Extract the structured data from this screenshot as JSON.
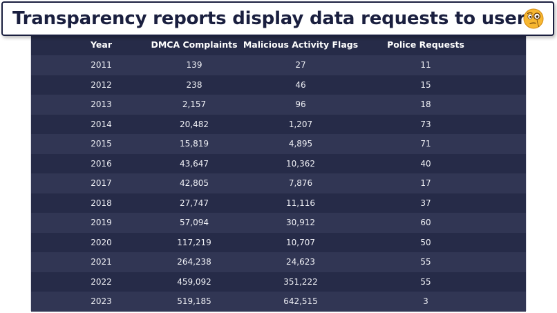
{
  "title": "Transparency reports display data requests to users",
  "icon": "thinking-face-icon",
  "colors": {
    "table_background": "#232844",
    "row_alt": "#313654",
    "title_text": "#1a1f3f",
    "emoji": "#f7b731"
  },
  "table": {
    "headers": [
      "Year",
      "DMCA Complaints",
      "Malicious Activity Flags",
      "Police Requests"
    ],
    "rows": [
      [
        "2011",
        "139",
        "27",
        "11"
      ],
      [
        "2012",
        "238",
        "46",
        "15"
      ],
      [
        "2013",
        "2,157",
        "96",
        "18"
      ],
      [
        "2014",
        "20,482",
        "1,207",
        "73"
      ],
      [
        "2015",
        "15,819",
        "4,895",
        "71"
      ],
      [
        "2016",
        "43,647",
        "10,362",
        "40"
      ],
      [
        "2017",
        "42,805",
        "7,876",
        "17"
      ],
      [
        "2018",
        "27,747",
        "11,116",
        "37"
      ],
      [
        "2019",
        "57,094",
        "30,912",
        "60"
      ],
      [
        "2020",
        "117,219",
        "10,707",
        "50"
      ],
      [
        "2021",
        "264,238",
        "24,623",
        "55"
      ],
      [
        "2022",
        "459,092",
        "351,222",
        "55"
      ],
      [
        "2023",
        "519,185",
        "642,515",
        "3"
      ]
    ]
  }
}
